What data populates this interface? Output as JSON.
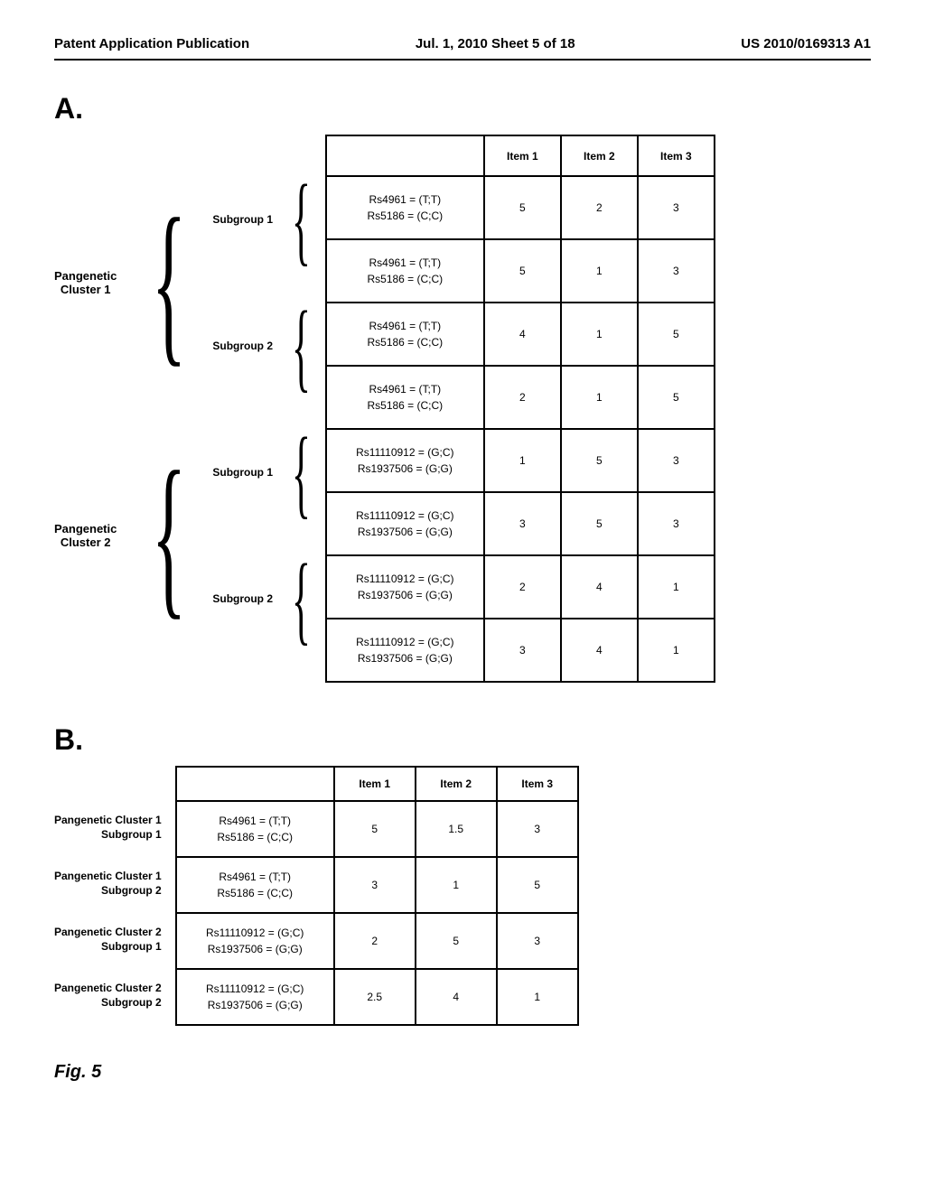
{
  "header": {
    "left": "Patent Application Publication",
    "center": "Jul. 1, 2010  Sheet 5 of 18",
    "right": "US 2010/0169313 A1"
  },
  "sectionA": {
    "label": "A.",
    "clusters": [
      {
        "name": "Pangenetic\nCluster 1",
        "subgroups": [
          {
            "name": "Subgroup 1"
          },
          {
            "name": "Subgroup 2"
          }
        ]
      },
      {
        "name": "Pangenetic\nCluster 2",
        "subgroups": [
          {
            "name": "Subgroup 1"
          },
          {
            "name": "Subgroup 2"
          }
        ]
      }
    ],
    "table": {
      "headers": [
        "",
        "Item 1",
        "Item 2",
        "Item 3"
      ],
      "rows": [
        {
          "genotype": "Rs4961 = (T;T)\nRs5186 = (C;C)",
          "item1": "5",
          "item2": "2",
          "item3": "3"
        },
        {
          "genotype": "Rs4961 = (T;T)\nRs5186 = (C;C)",
          "item1": "5",
          "item2": "1",
          "item3": "3"
        },
        {
          "genotype": "Rs4961 = (T;T)\nRs5186 = (C;C)",
          "item1": "4",
          "item2": "1",
          "item3": "5"
        },
        {
          "genotype": "Rs4961 = (T;T)\nRs5186 = (C;C)",
          "item1": "2",
          "item2": "1",
          "item3": "5"
        },
        {
          "genotype": "Rs11110912 = (G;C)\nRs1937506 = (G;G)",
          "item1": "1",
          "item2": "5",
          "item3": "3"
        },
        {
          "genotype": "Rs11110912 = (G;C)\nRs1937506 = (G;G)",
          "item1": "3",
          "item2": "5",
          "item3": "3"
        },
        {
          "genotype": "Rs11110912 = (G;C)\nRs1937506 = (G;G)",
          "item1": "2",
          "item2": "4",
          "item3": "1"
        },
        {
          "genotype": "Rs11110912 = (G;C)\nRs1937506 = (G;G)",
          "item1": "3",
          "item2": "4",
          "item3": "1"
        }
      ]
    }
  },
  "sectionB": {
    "label": "B.",
    "labels": [
      "Pangenetic Cluster 1\nSubgroup 1",
      "Pangenetic Cluster 1\nSubgroup 2",
      "Pangenetic Cluster 2\nSubgroup 1",
      "Pangenetic Cluster 2\nSubgroup 2"
    ],
    "table": {
      "headers": [
        "",
        "Item 1",
        "Item 2",
        "Item 3"
      ],
      "rows": [
        {
          "genotype": "Rs4961 = (T;T)\nRs5186 = (C;C)",
          "item1": "5",
          "item2": "1.5",
          "item3": "3"
        },
        {
          "genotype": "Rs4961 = (T;T)\nRs5186 = (C;C)",
          "item1": "3",
          "item2": "1",
          "item3": "5"
        },
        {
          "genotype": "Rs11110912 = (G;C)\nRs1937506 = (G;G)",
          "item1": "2",
          "item2": "5",
          "item3": "3"
        },
        {
          "genotype": "Rs11110912 = (G;C)\nRs1937506 = (G;G)",
          "item1": "2.5",
          "item2": "4",
          "item3": "1"
        }
      ]
    }
  },
  "figLabel": "Fig.  5"
}
